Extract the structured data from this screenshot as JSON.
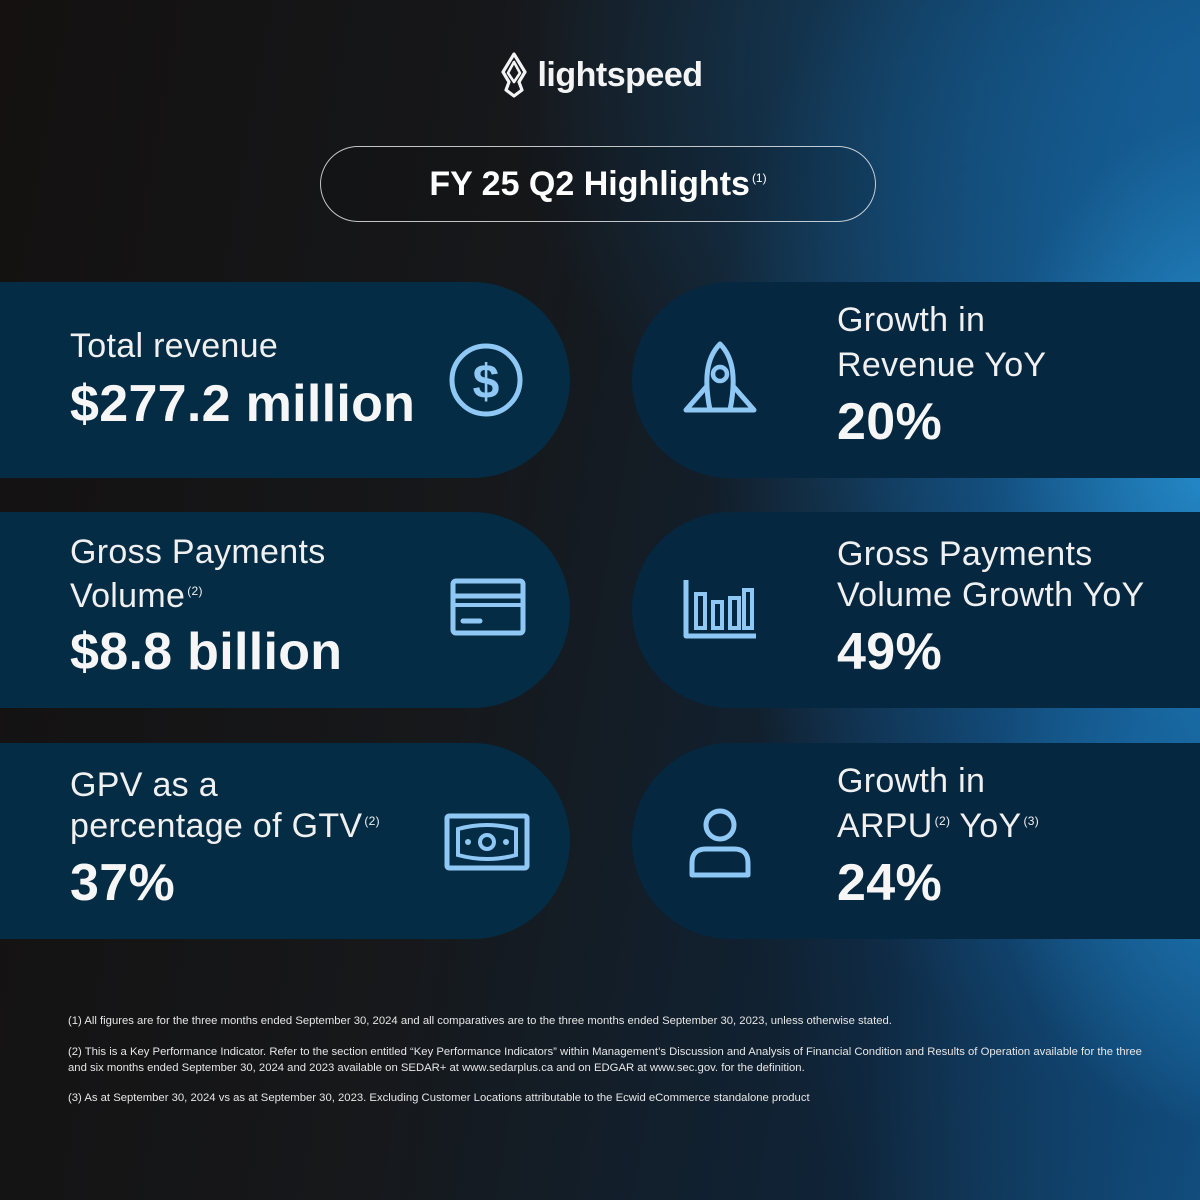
{
  "brand": {
    "logo_text": "lightspeed",
    "accent_color": "#8fc8f4"
  },
  "header": {
    "title": "FY 25 Q2 Highlights",
    "title_note": "(1)"
  },
  "cards": [
    {
      "label_lines": [
        "Total revenue"
      ],
      "note": "",
      "value": "$277.2 million",
      "icon": "dollar-coin-icon"
    },
    {
      "label_lines": [
        "Growth in",
        "Revenue YoY"
      ],
      "note": "",
      "value": "20%",
      "icon": "rocket-icon"
    },
    {
      "label_lines": [
        "Gross Payments",
        "Volume"
      ],
      "note": "(2)",
      "value": "$8.8 billion",
      "icon": "credit-card-icon"
    },
    {
      "label_lines": [
        "Gross Payments",
        "Volume Growth YoY"
      ],
      "note": "",
      "value": "49%",
      "icon": "bar-chart-icon"
    },
    {
      "label_lines": [
        "GPV as a",
        "percentage of GTV"
      ],
      "note": "(2)",
      "value": "37%",
      "icon": "banknote-icon"
    },
    {
      "label_lines": [
        "Growth in",
        "ARPU",
        "YoY"
      ],
      "note": "(2)",
      "note2": "(3)",
      "value": "24%",
      "icon": "user-icon"
    }
  ],
  "footnotes": [
    "(1) All figures are for the three months ended September 30, 2024 and all comparatives are to the three months ended September 30, 2023, unless otherwise stated.",
    "(2) This is a Key Performance Indicator. Refer to the section entitled “Key Performance Indicators” within Management’s Discussion and Analysis of Financial Condition and Results of Operation available for the three and six months ended September 30, 2024 and 2023 available on SEDAR+ at www.sedarplus.ca and on EDGAR at www.sec.gov. for the definition.",
    "(3) As at September 30, 2024 vs as at September 30, 2023. Excluding Customer Locations attributable to the Ecwid eCommerce standalone product"
  ]
}
